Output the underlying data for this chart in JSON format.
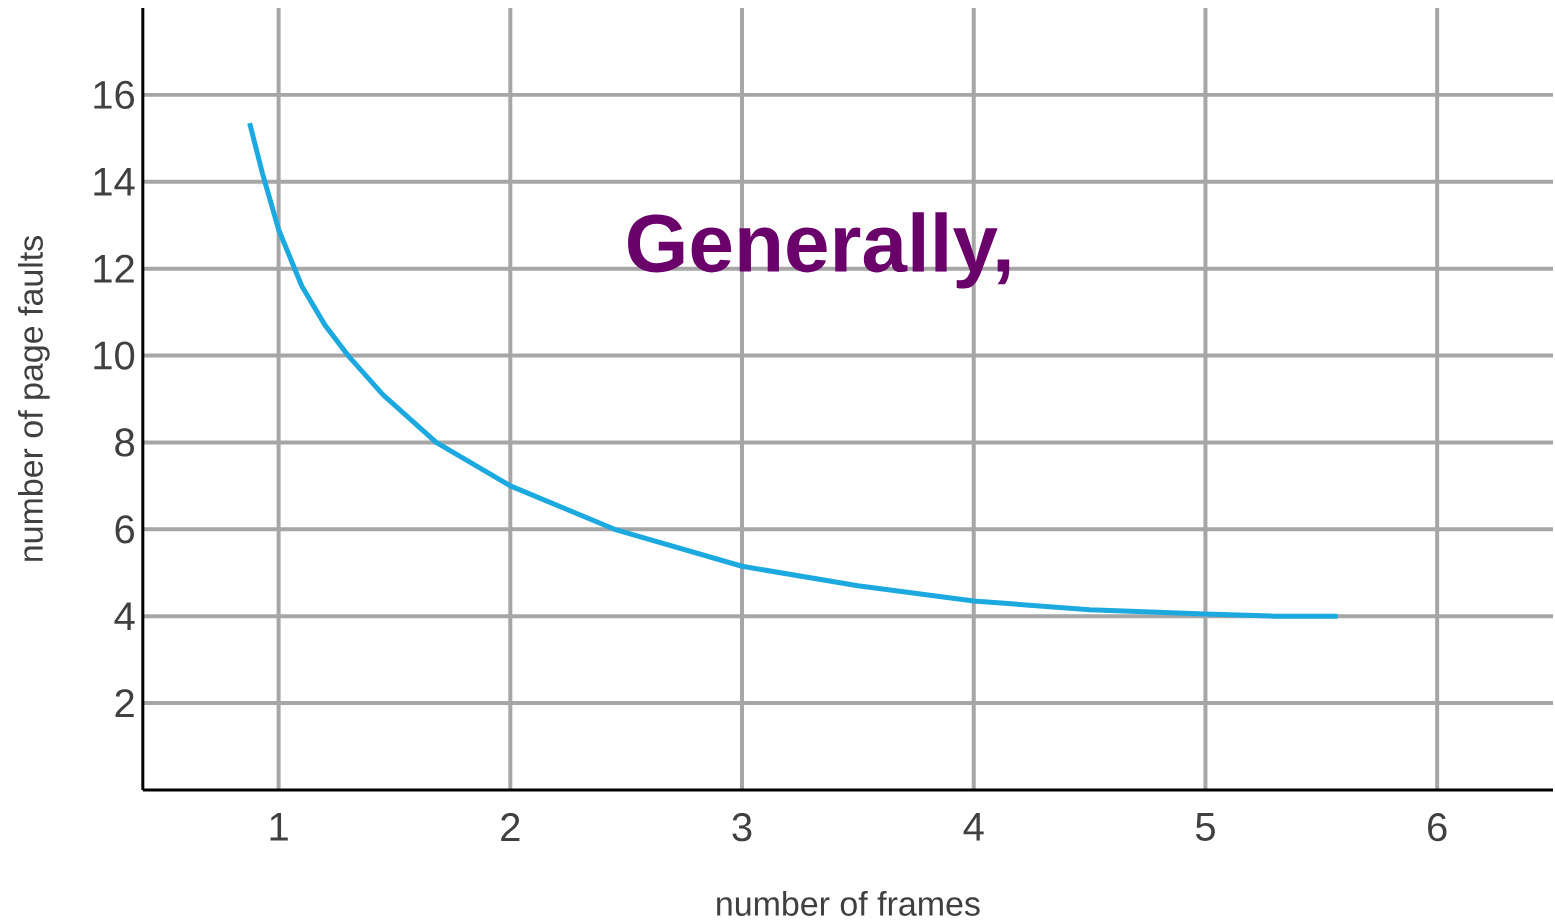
{
  "chart_data": {
    "type": "line",
    "xlabel": "number of frames",
    "ylabel": "number of page faults",
    "annotations": [
      "Generally,"
    ],
    "series": [
      {
        "color": "#1ba9df",
        "x": [
          0.875,
          0.93,
          1.0,
          1.1,
          1.2,
          1.3,
          1.45,
          1.68,
          2.0,
          2.45,
          3.0,
          3.5,
          4.0,
          4.5,
          5.0,
          5.3,
          5.57
        ],
        "values": [
          15.35,
          14.2,
          12.9,
          11.6,
          10.7,
          10.0,
          9.1,
          8.0,
          7.0,
          6.0,
          5.15,
          4.7,
          4.35,
          4.15,
          4.05,
          4.0,
          4.0
        ]
      }
    ],
    "xlim": [
      0.414,
      6.5
    ],
    "ylim": [
      0,
      18
    ],
    "xticks": [
      1,
      2,
      3,
      4,
      5,
      6
    ],
    "yticks": [
      2,
      4,
      6,
      8,
      10,
      12,
      14,
      16
    ],
    "grid": true,
    "marker": "none",
    "line_style": "solid"
  }
}
